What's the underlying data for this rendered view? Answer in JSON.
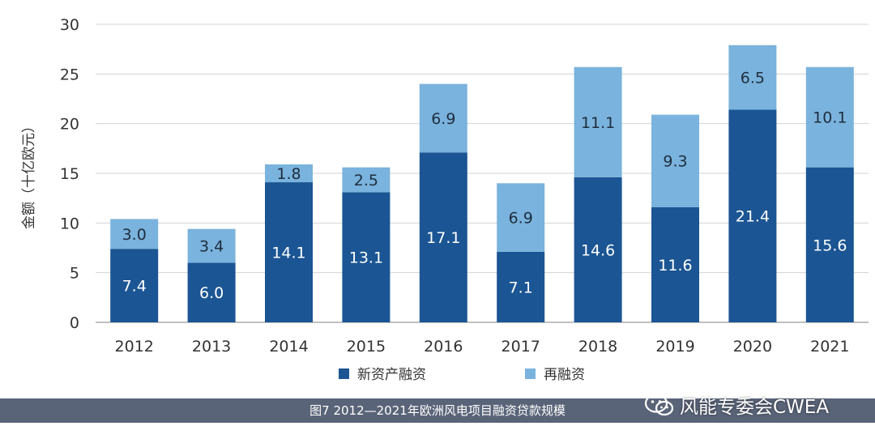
{
  "chart_data": {
    "type": "bar",
    "stacked": true,
    "ylabel": "金额（十亿欧元）",
    "ylim": [
      0,
      30
    ],
    "yticks": [
      "0",
      "5",
      "10",
      "15",
      "20",
      "25",
      "30"
    ],
    "grid": true,
    "legend_position": "bottom",
    "categories": [
      "2012",
      "2013",
      "2014",
      "2015",
      "2016",
      "2017",
      "2018",
      "2019",
      "2020",
      "2021"
    ],
    "series": [
      {
        "name": "新资产融资",
        "color": "#1b5593",
        "values": [
          7.4,
          6.0,
          14.1,
          13.1,
          17.1,
          7.1,
          14.6,
          11.6,
          21.4,
          15.6
        ],
        "labels": [
          "7.4",
          "6.0",
          "14.1",
          "13.1",
          "17.1",
          "7.1",
          "14.6",
          "11.6",
          "21.4",
          "15.6"
        ]
      },
      {
        "name": "再融资",
        "color": "#7ab3dd",
        "values": [
          3.0,
          3.4,
          1.8,
          2.5,
          6.9,
          6.9,
          11.1,
          9.3,
          6.5,
          10.1
        ],
        "labels": [
          "3.0",
          "3.4",
          "1.8",
          "2.5",
          "6.9",
          "6.9",
          "11.1",
          "9.3",
          "6.5",
          "10.1"
        ]
      }
    ]
  },
  "caption": "图7 2012—2021年欧洲风电项目融资贷款规模",
  "watermark": "风能专委会CWEA"
}
